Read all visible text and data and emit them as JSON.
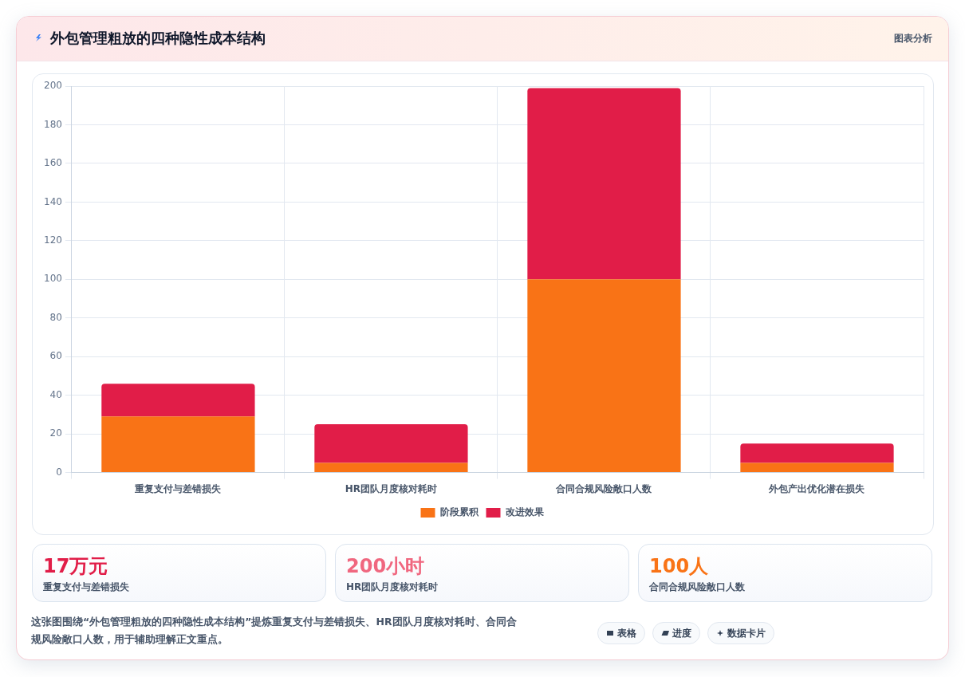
{
  "chart_data": {
    "type": "bar",
    "title": "外包管理粗放的四种隐性成本结构",
    "categories": [
      "重复支付与差错损失",
      "HR团队月度核对耗时",
      "合同合规风险敞口人数",
      "外包产出优化潜在损失"
    ],
    "series": [
      {
        "name": "阶段累积",
        "color": "#f97316",
        "values": [
          29,
          5,
          100,
          5
        ]
      },
      {
        "name": "改进效果",
        "color": "#e11d48",
        "values": [
          17,
          20,
          99,
          10
        ]
      }
    ],
    "stacked": true,
    "ylim": [
      0,
      200
    ],
    "yticks": [
      0,
      20,
      40,
      60,
      80,
      100,
      120,
      140,
      160,
      180,
      200
    ],
    "grid": true,
    "legend": "bottom",
    "annotations": [
      "图表分析",
      "17万元",
      "重复支付与差错损失",
      "200小时",
      "HR团队月度核对耗时",
      "100人",
      "合同合规风险敞口人数",
      "这张图围绕“外包管理粗放的四种隐性成本结构”提炼重复支付与差错损失、HR团队月度核对耗时、合同合规风险敞口人数，用于辅助理解正文重点。",
      "表格",
      "进度",
      "数据卡片"
    ]
  }
}
